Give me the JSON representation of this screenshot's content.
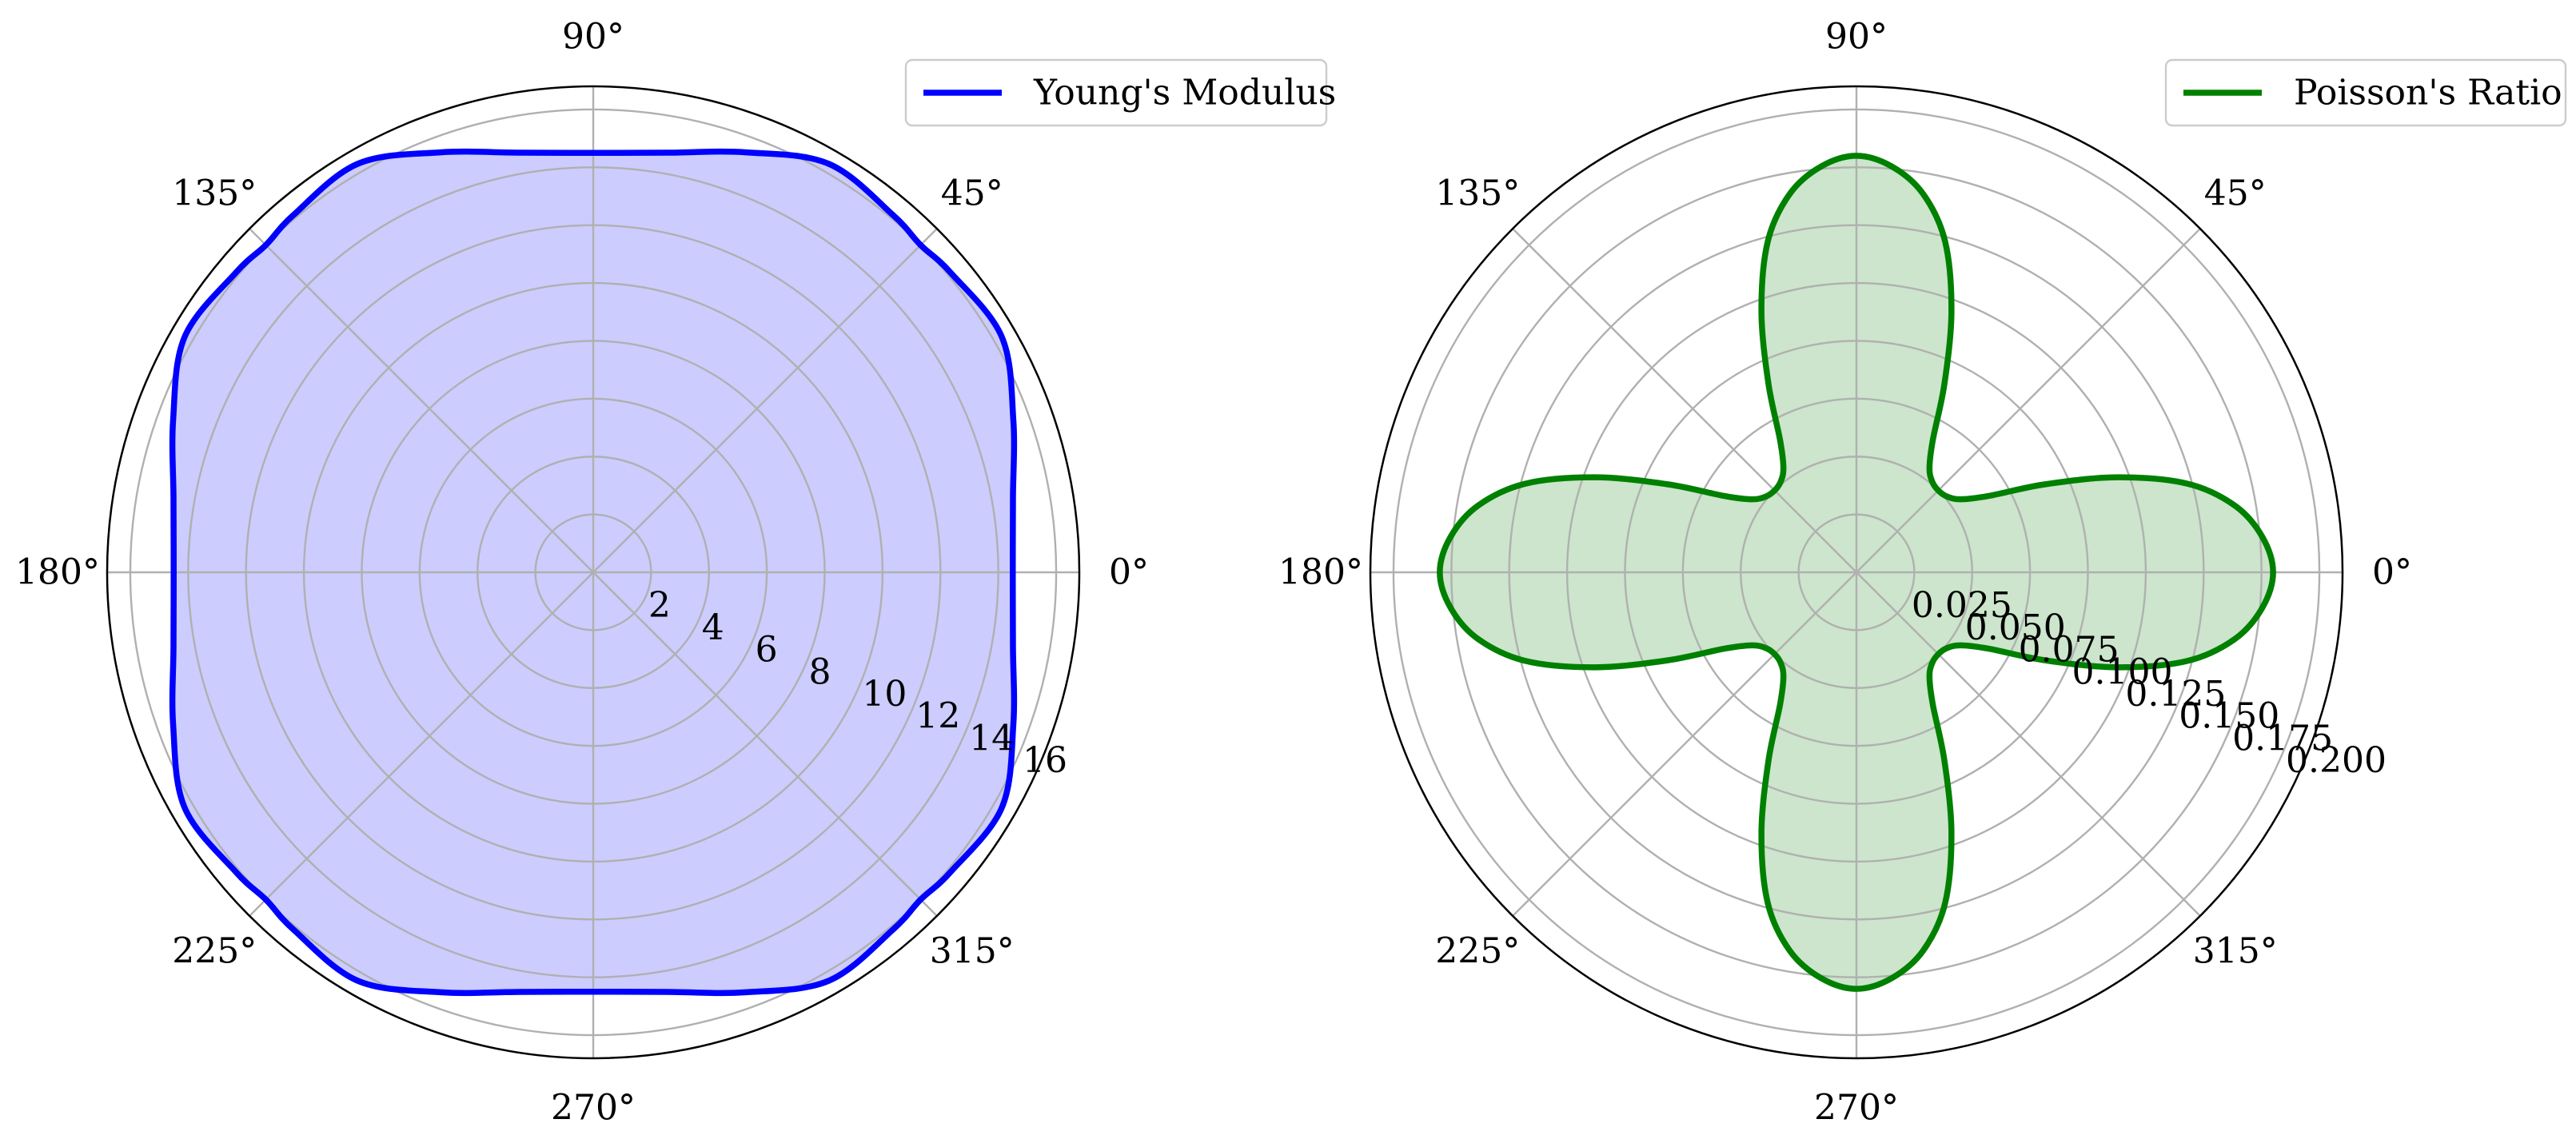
{
  "chart_data": [
    {
      "type": "polar-line",
      "angle_ticks": [
        "0°",
        "45°",
        "90°",
        "135°",
        "180°",
        "225°",
        "270°",
        "315°"
      ],
      "radial_ticks": [
        2,
        4,
        6,
        8,
        10,
        12,
        14,
        16
      ],
      "radial_tick_labels": [
        "2",
        "4",
        "6",
        "8",
        "10",
        "12",
        "14",
        "16"
      ],
      "rlim": [
        0,
        16.8
      ],
      "grid": true,
      "legend_position": "top-right",
      "series": [
        {
          "name": "Young's Modulus",
          "color": "#0000ff",
          "fill": "#ccccff",
          "theta_deg": [
            0,
            10,
            20,
            30,
            40,
            45,
            50,
            60,
            70,
            80,
            90
          ],
          "r": [
            14.5,
            14.73,
            15.45,
            16.3,
            16.12,
            16.0,
            16.12,
            16.3,
            15.45,
            14.73,
            14.5
          ]
        }
      ]
    },
    {
      "type": "polar-line",
      "angle_ticks": [
        "0°",
        "45°",
        "90°",
        "135°",
        "180°",
        "225°",
        "270°",
        "315°"
      ],
      "radial_ticks": [
        0.025,
        0.05,
        0.075,
        0.1,
        0.125,
        0.15,
        0.175,
        0.2
      ],
      "radial_tick_labels": [
        "0.025",
        "0.050",
        "0.075",
        "0.100",
        "0.125",
        "0.150",
        "0.175",
        "0.200"
      ],
      "rlim": [
        0,
        0.21
      ],
      "grid": true,
      "legend_position": "top-right",
      "series": [
        {
          "name": "Poisson's Ratio",
          "color": "#008000",
          "fill": "#cce5cc",
          "theta_deg": [
            0,
            5,
            10,
            15,
            20,
            25,
            30,
            35,
            40,
            45,
            50,
            55,
            60,
            65,
            70,
            75,
            80,
            85,
            90
          ],
          "r": [
            0.18,
            0.176,
            0.166,
            0.148,
            0.12,
            0.09,
            0.066,
            0.055,
            0.051,
            0.05,
            0.051,
            0.055,
            0.066,
            0.09,
            0.12,
            0.148,
            0.166,
            0.176,
            0.18
          ]
        }
      ]
    }
  ]
}
